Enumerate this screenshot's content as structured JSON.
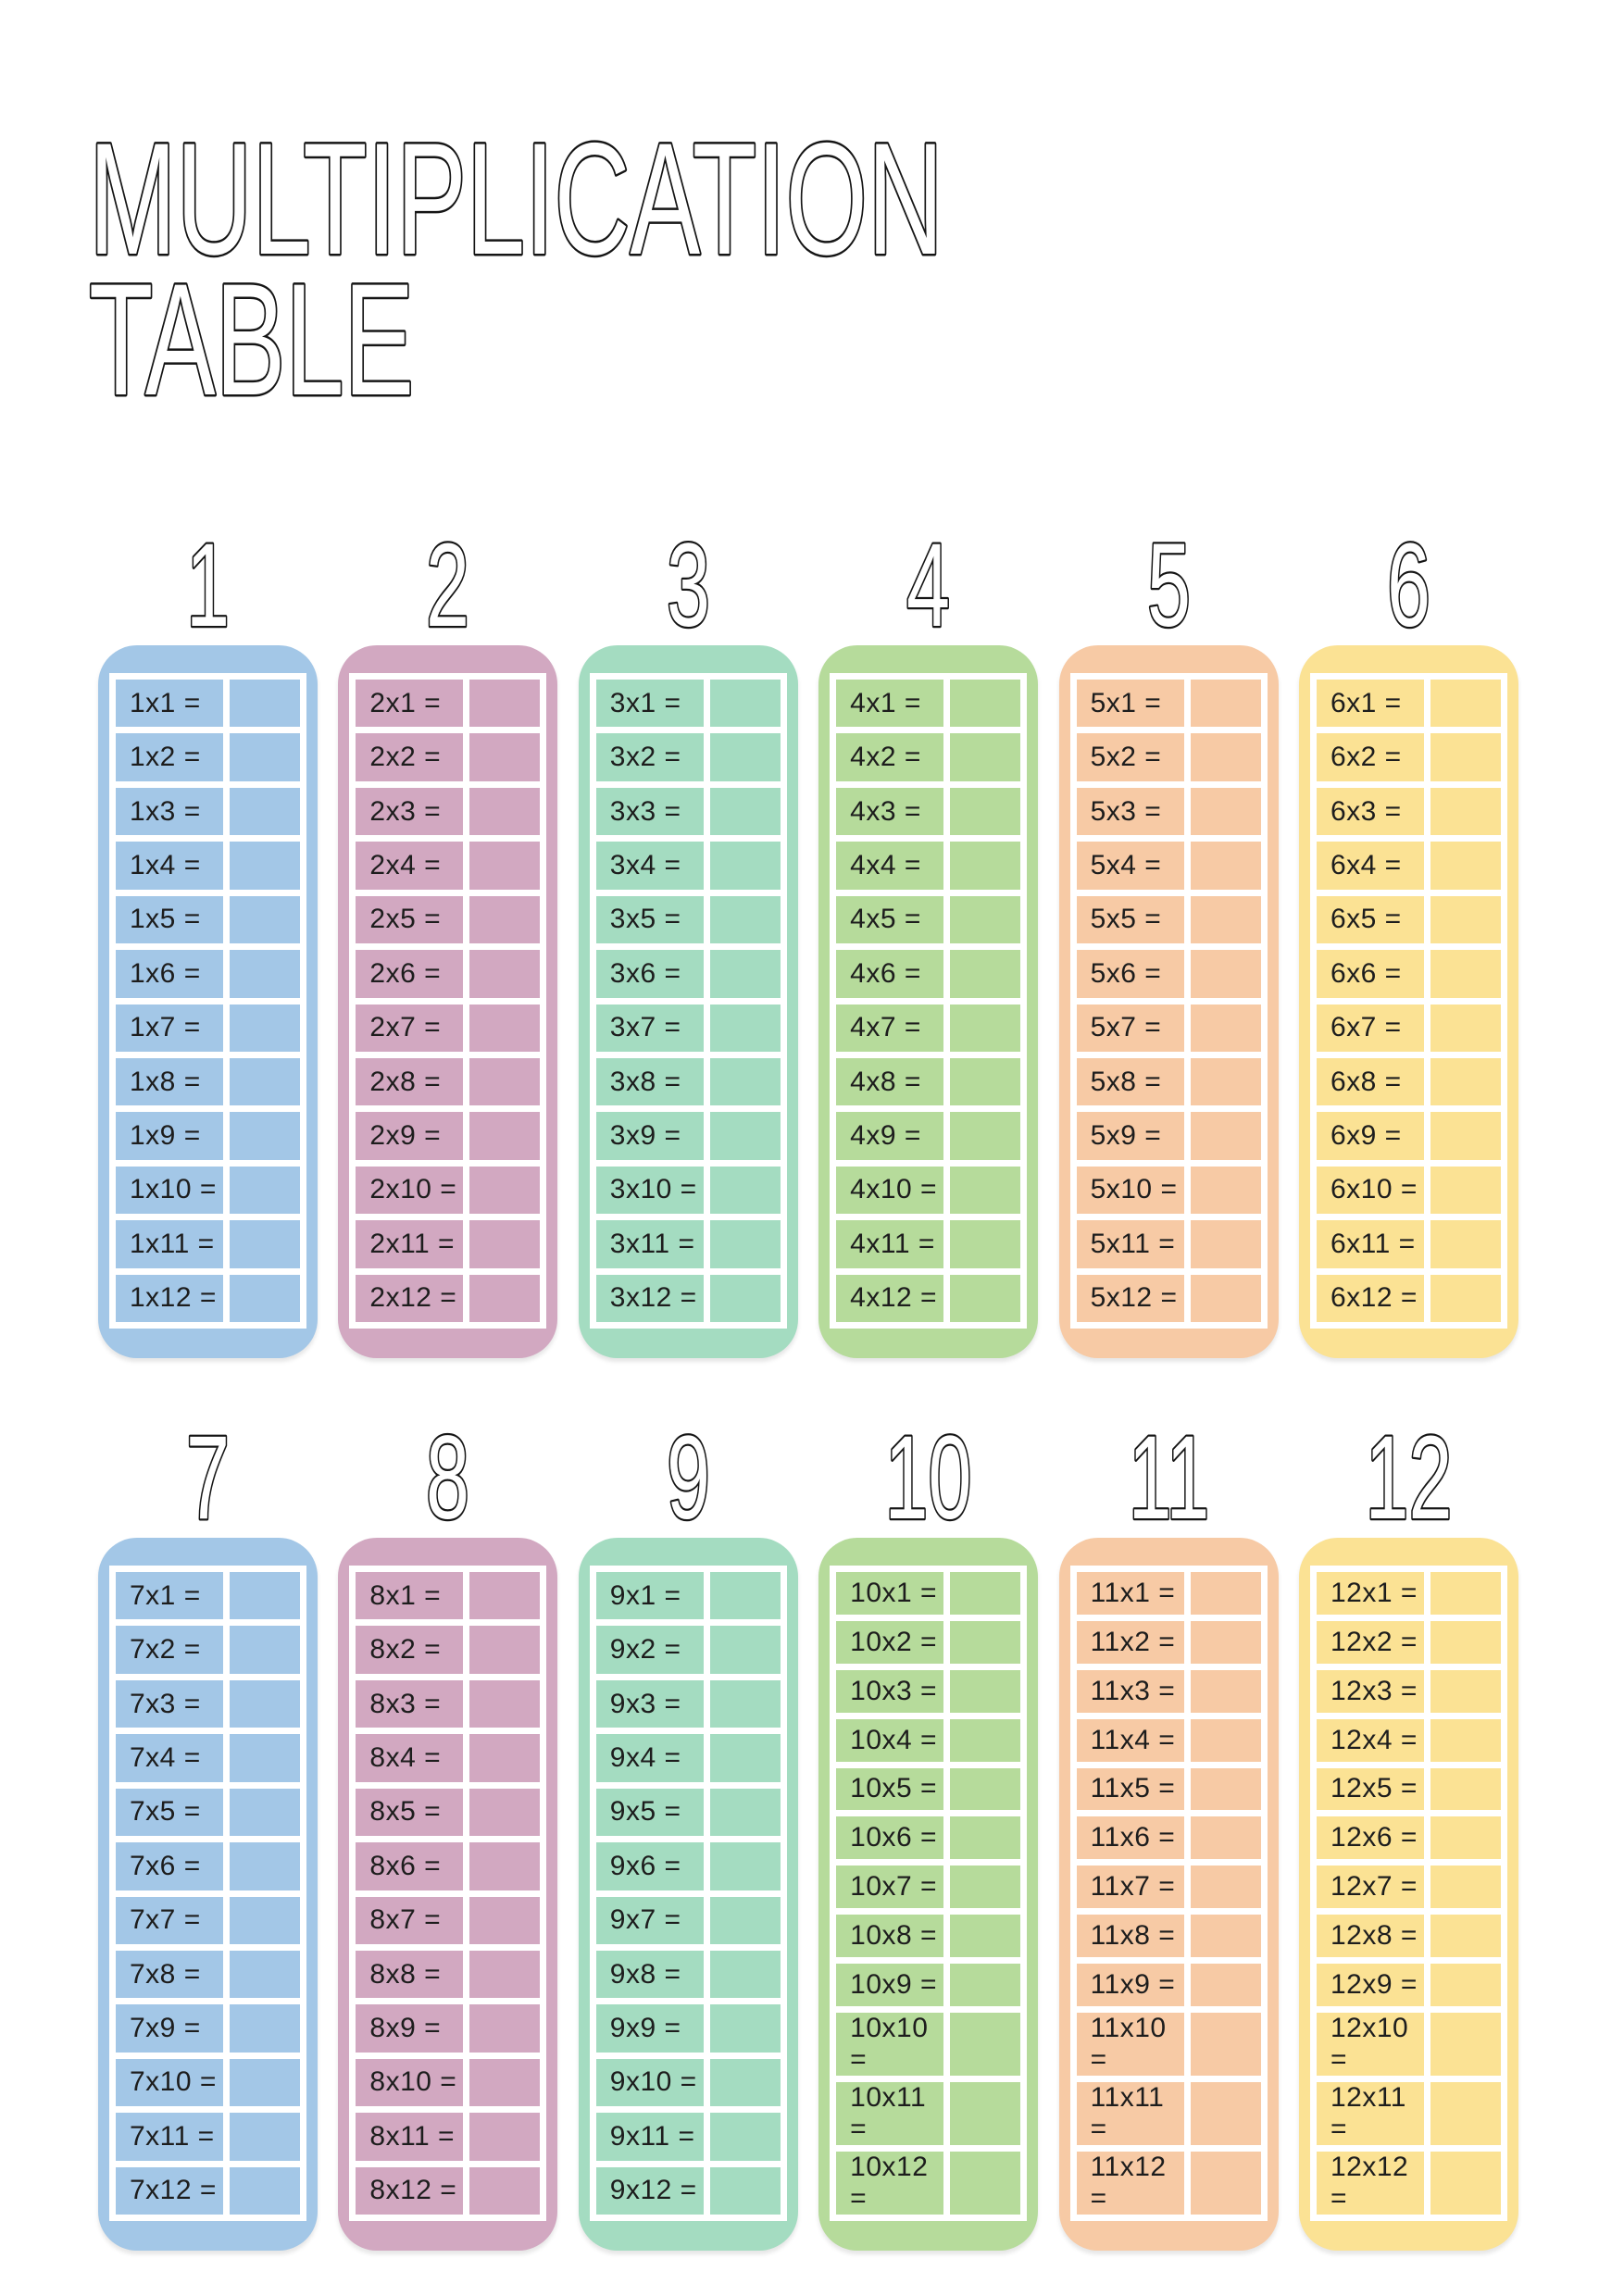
{
  "page": {
    "title_line1": "MULTIPLICATION",
    "title_line2": "TABLE"
  },
  "style": {
    "background": "#ffffff",
    "text_color": "#1d1d1d",
    "outline_text_fill": "#ffffff",
    "outline_text_stroke": "#151515",
    "grid_line_color": "#ffffff",
    "card_colors": {
      "blue": "#a3c7e7",
      "pink": "#d2a8c1",
      "mint": "#a4dcc1",
      "green": "#b6db9b",
      "peach": "#f7caa5",
      "yellow": "#fbe294"
    }
  },
  "cards": [
    {
      "number": "1",
      "color": "#a3c7e7",
      "problems": [
        "1x1 =",
        "1x2 =",
        "1x3 =",
        "1x4 =",
        "1x5 =",
        "1x6 =",
        "1x7 =",
        "1x8 =",
        "1x9 =",
        "1x10 =",
        "1x11 =",
        "1x12 ="
      ]
    },
    {
      "number": "2",
      "color": "#d2a8c1",
      "problems": [
        "2x1 =",
        "2x2 =",
        "2x3 =",
        "2x4 =",
        "2x5 =",
        "2x6 =",
        "2x7 =",
        "2x8 =",
        "2x9 =",
        "2x10 =",
        "2x11 =",
        "2x12 ="
      ]
    },
    {
      "number": "3",
      "color": "#a4dcc1",
      "problems": [
        "3x1 =",
        "3x2 =",
        "3x3 =",
        "3x4 =",
        "3x5 =",
        "3x6 =",
        "3x7 =",
        "3x8 =",
        "3x9 =",
        "3x10 =",
        "3x11 =",
        "3x12 ="
      ]
    },
    {
      "number": "4",
      "color": "#b6db9b",
      "problems": [
        "4x1 =",
        "4x2 =",
        "4x3 =",
        "4x4 =",
        "4x5 =",
        "4x6 =",
        "4x7 =",
        "4x8 =",
        "4x9 =",
        "4x10 =",
        "4x11 =",
        "4x12 ="
      ]
    },
    {
      "number": "5",
      "color": "#f7caa5",
      "problems": [
        "5x1 =",
        "5x2 =",
        "5x3 =",
        "5x4 =",
        "5x5 =",
        "5x6 =",
        "5x7 =",
        "5x8 =",
        "5x9 =",
        "5x10 =",
        "5x11 =",
        "5x12 ="
      ]
    },
    {
      "number": "6",
      "color": "#fbe294",
      "problems": [
        "6x1 =",
        "6x2 =",
        "6x3 =",
        "6x4 =",
        "6x5 =",
        "6x6 =",
        "6x7 =",
        "6x8 =",
        "6x9 =",
        "6x10 =",
        "6x11 =",
        "6x12 ="
      ]
    },
    {
      "number": "7",
      "color": "#a3c7e7",
      "problems": [
        "7x1 =",
        "7x2 =",
        "7x3 =",
        "7x4 =",
        "7x5 =",
        "7x6 =",
        "7x7 =",
        "7x8 =",
        "7x9 =",
        "7x10 =",
        "7x11 =",
        "7x12 ="
      ]
    },
    {
      "number": "8",
      "color": "#d2a8c1",
      "problems": [
        "8x1 =",
        "8x2 =",
        "8x3 =",
        "8x4 =",
        "8x5 =",
        "8x6 =",
        "8x7 =",
        "8x8 =",
        "8x9 =",
        "8x10 =",
        "8x11 =",
        "8x12 ="
      ]
    },
    {
      "number": "9",
      "color": "#a4dcc1",
      "problems": [
        "9x1 =",
        "9x2 =",
        "9x3 =",
        "9x4 =",
        "9x5 =",
        "9x6 =",
        "9x7 =",
        "9x8 =",
        "9x9 =",
        "9x10 =",
        "9x11 =",
        "9x12 ="
      ]
    },
    {
      "number": "10",
      "color": "#b6db9b",
      "problems": [
        "10x1 =",
        "10x2 =",
        "10x3 =",
        "10x4 =",
        "10x5 =",
        "10x6 =",
        "10x7 =",
        "10x8 =",
        "10x9 =",
        "10x10 =",
        "10x11 =",
        "10x12 ="
      ]
    },
    {
      "number": "11",
      "color": "#f7caa5",
      "problems": [
        "11x1 =",
        "11x2 =",
        "11x3 =",
        "11x4 =",
        "11x5 =",
        "11x6 =",
        "11x7 =",
        "11x8 =",
        "11x9 =",
        "11x10 =",
        "11x11 =",
        "11x12 ="
      ]
    },
    {
      "number": "12",
      "color": "#fbe294",
      "problems": [
        "12x1 =",
        "12x2 =",
        "12x3 =",
        "12x4 =",
        "12x5 =",
        "12x6 =",
        "12x7 =",
        "12x8 =",
        "12x9 =",
        "12x10 =",
        "12x11 =",
        "12x12 ="
      ]
    }
  ]
}
